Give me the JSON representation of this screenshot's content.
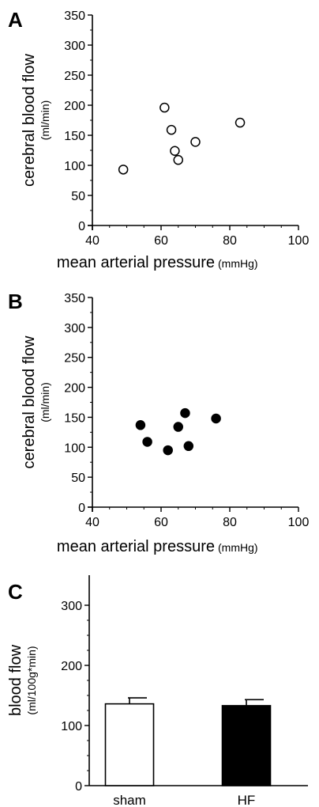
{
  "chart_data": [
    {
      "type": "scatter",
      "panel_label": "A",
      "xlabel": "mean arterial pressure",
      "xunit": "(mmHg)",
      "ylabel": "cerebral blood flow",
      "yunit": "(ml/min)",
      "xlim": [
        40,
        100
      ],
      "ylim": [
        0,
        350
      ],
      "xticks": [
        "40",
        "60",
        "80",
        "100"
      ],
      "yticks": [
        "0",
        "50",
        "100",
        "150",
        "200",
        "250",
        "300",
        "350"
      ],
      "grid": false,
      "marker": "open-circle",
      "series": [
        {
          "x": [
            49,
            61,
            63,
            64,
            65,
            70,
            83
          ],
          "y": [
            93,
            196,
            159,
            124,
            109,
            139,
            171
          ]
        }
      ]
    },
    {
      "type": "scatter",
      "panel_label": "B",
      "xlabel": "mean arterial pressure",
      "xunit": "(mmHg)",
      "ylabel": "cerebral blood flow",
      "yunit": "(ml/min)",
      "xlim": [
        40,
        100
      ],
      "ylim": [
        0,
        350
      ],
      "xticks": [
        "40",
        "60",
        "80",
        "100"
      ],
      "yticks": [
        "0",
        "50",
        "100",
        "150",
        "200",
        "250",
        "300",
        "350"
      ],
      "grid": false,
      "marker": "filled-circle",
      "series": [
        {
          "x": [
            54,
            56,
            62,
            65,
            67,
            68,
            76
          ],
          "y": [
            137,
            109,
            95,
            134,
            157,
            102,
            148
          ]
        }
      ]
    },
    {
      "type": "bar",
      "panel_label": "C",
      "ylabel": "blood flow",
      "yunit": "(ml/100g*min)",
      "categories": [
        "sham",
        "HF"
      ],
      "values": [
        136,
        133
      ],
      "errors": [
        10,
        10
      ],
      "bar_colors": [
        "#ffffff",
        "#000000"
      ],
      "ylim": [
        0,
        350
      ],
      "yticks": [
        "0",
        "100",
        "200",
        "300"
      ],
      "grid": false
    }
  ]
}
